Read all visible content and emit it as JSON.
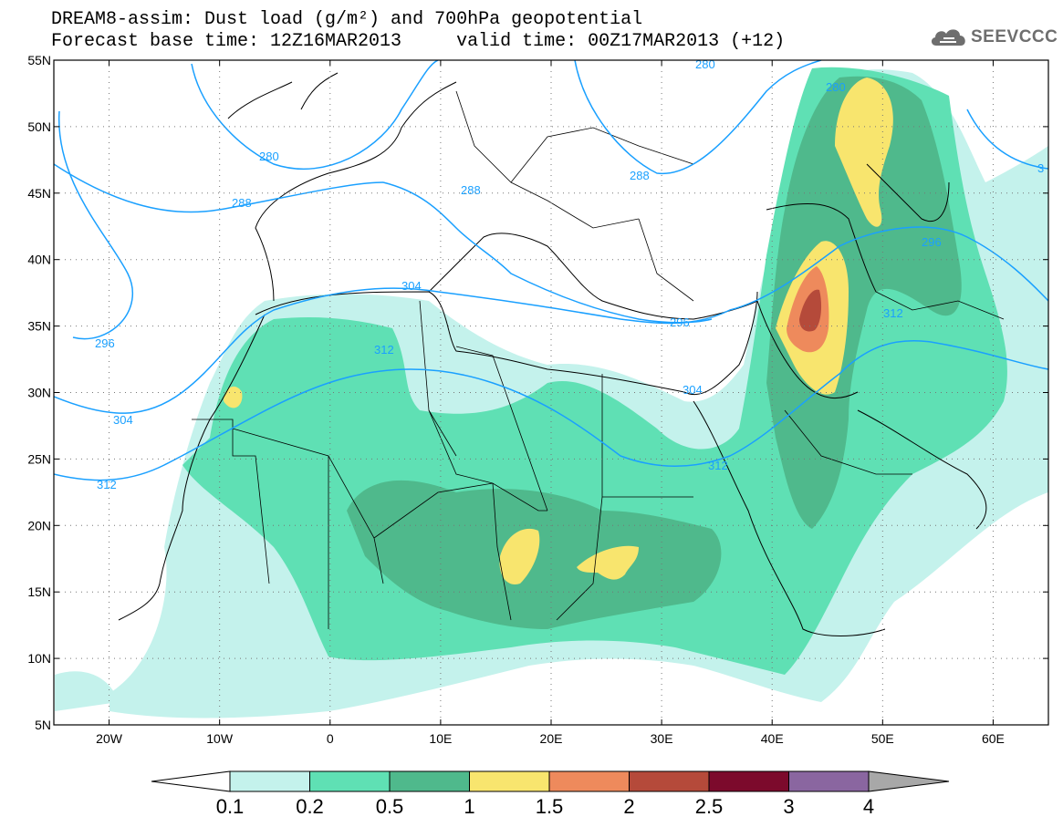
{
  "title": {
    "line1": "DREAM8-assim: Dust load (g/m²) and 700hPa geopotential",
    "line2": "Forecast base time: 12Z16MAR2013     valid time: 00Z17MAR2013 (+12)"
  },
  "logo": {
    "text": "SEEVCCC",
    "icon": "cloud-icon"
  },
  "map": {
    "lat_labels": [
      "55N",
      "50N",
      "45N",
      "40N",
      "35N",
      "30N",
      "25N",
      "20N",
      "15N",
      "10N",
      "5N"
    ],
    "lat_values": [
      55,
      50,
      45,
      40,
      35,
      30,
      25,
      20,
      15,
      10,
      5
    ],
    "lon_labels": [
      "20W",
      "10W",
      "0",
      "10E",
      "20E",
      "30E",
      "40E",
      "50E",
      "60E"
    ],
    "lon_values": [
      -20,
      -10,
      0,
      10,
      20,
      30,
      40,
      50,
      60
    ],
    "extent": {
      "lon_min": -25,
      "lon_max": 65,
      "lat_min": 5,
      "lat_max": 55
    },
    "grid": true
  },
  "contours": {
    "color": "#1aa0ff",
    "labels": [
      "280",
      "280",
      "280",
      "288",
      "288",
      "288",
      "296",
      "296",
      "296",
      "3",
      "304",
      "304",
      "304",
      "312",
      "312",
      "312",
      "312"
    ]
  },
  "colorbar": {
    "labels": [
      "0.1",
      "0.2",
      "0.5",
      "1",
      "1.5",
      "2",
      "2.5",
      "3",
      "4"
    ],
    "colors": [
      "#c4f2ec",
      "#5fe0b4",
      "#4fb98c",
      "#f8e56e",
      "#ee8a5c",
      "#b54a3a",
      "#7c0a2c",
      "#8a66a0"
    ],
    "under_color": "#ffffff",
    "over_color": "#a8a8a8"
  }
}
